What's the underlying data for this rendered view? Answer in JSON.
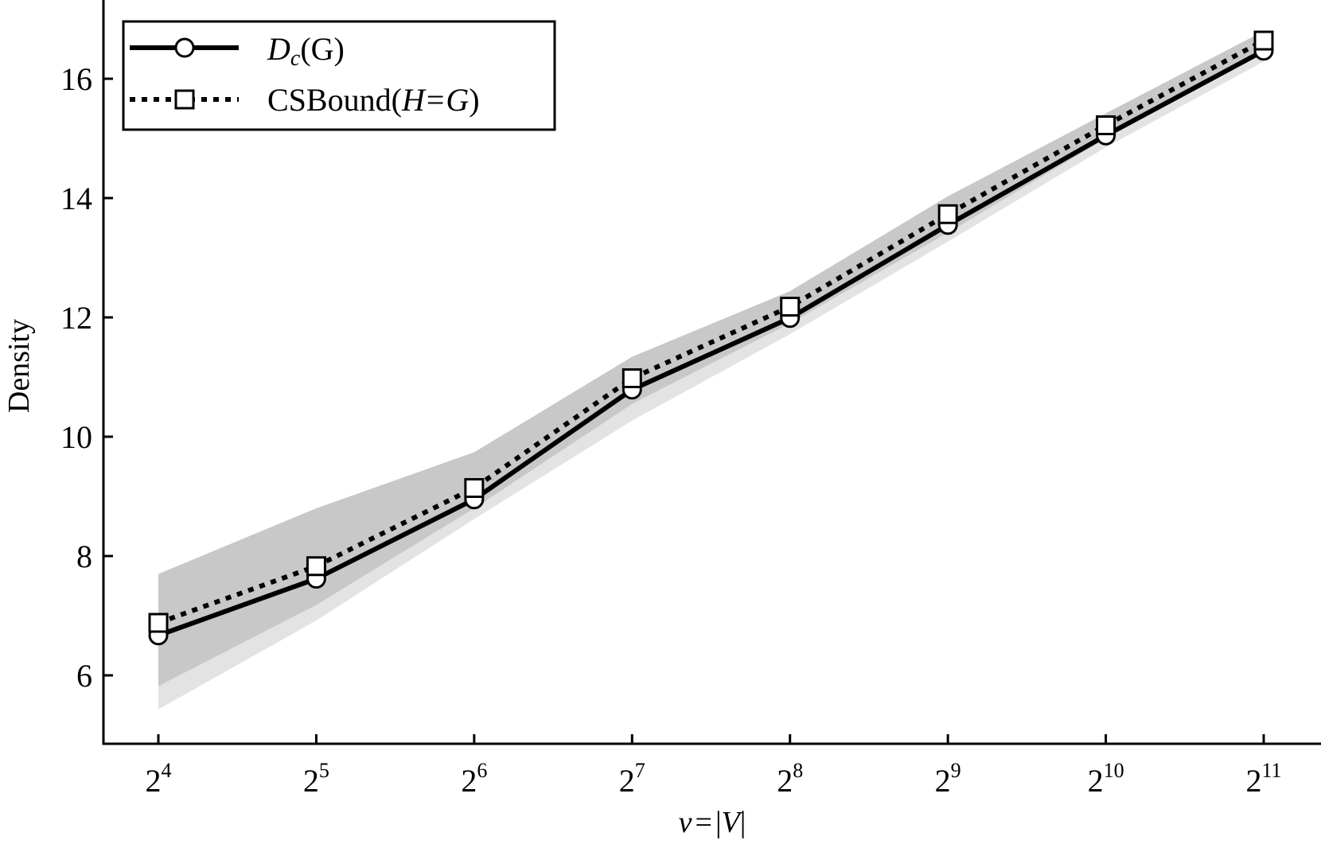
{
  "chart_data": {
    "type": "line",
    "xlabel": "v = |V|",
    "ylabel": "Density",
    "x": [
      4,
      5,
      6,
      7,
      8,
      9,
      10,
      11
    ],
    "x_tick_labels": [
      {
        "base": "2",
        "exp": "4"
      },
      {
        "base": "2",
        "exp": "5"
      },
      {
        "base": "2",
        "exp": "6"
      },
      {
        "base": "2",
        "exp": "7"
      },
      {
        "base": "2",
        "exp": "8"
      },
      {
        "base": "2",
        "exp": "9"
      },
      {
        "base": "2",
        "exp": "10"
      },
      {
        "base": "2",
        "exp": "11"
      }
    ],
    "x_scale": "log2",
    "xlim": [
      3.65,
      11.35
    ],
    "ylim": [
      4.9,
      17.3
    ],
    "y_ticks": [
      6,
      8,
      10,
      12,
      14,
      16
    ],
    "grid": false,
    "legend_position": "top-left",
    "series": [
      {
        "name_main": "D",
        "name_sub": "c",
        "name_rest": "(G)",
        "style": "solid",
        "marker": "circle",
        "color": "#000000",
        "values": [
          6.67,
          7.62,
          8.95,
          10.79,
          11.99,
          13.55,
          15.05,
          16.47
        ],
        "band_lower": [
          5.43,
          6.92,
          8.62,
          10.27,
          11.72,
          13.27,
          14.85,
          16.29
        ],
        "band_upper": [
          7.34,
          8.33,
          9.37,
          10.98,
          12.17,
          13.82,
          15.27,
          16.64
        ],
        "band_color": "#e3e3e3"
      },
      {
        "name_main": "CSBound(",
        "name_italic": "H",
        "name_eq": "=",
        "name_italic2": "G",
        "name_close": ")",
        "style": "dotted",
        "marker": "square",
        "color": "#000000",
        "values": [
          6.88,
          7.83,
          9.14,
          10.98,
          12.18,
          13.73,
          15.22,
          16.64
        ],
        "band_lower": [
          5.82,
          7.18,
          8.8,
          10.55,
          11.9,
          13.42,
          15.0,
          16.45
        ],
        "band_upper": [
          7.7,
          8.8,
          9.74,
          11.34,
          12.44,
          14.03,
          15.42,
          16.8
        ],
        "band_color": "#c8c8c8"
      }
    ]
  }
}
